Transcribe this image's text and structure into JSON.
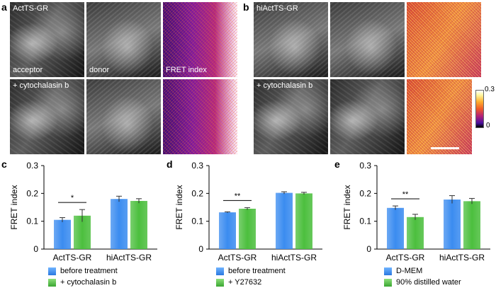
{
  "panels": {
    "a": {
      "letter": "a",
      "title": "ActTS-GR",
      "labels": {
        "acceptor": "acceptor",
        "donor": "donor",
        "fret": "FRET index"
      },
      "treatment": "+ cytochalasin b"
    },
    "b": {
      "letter": "b",
      "title": "hiActTS-GR",
      "treatment": "+ cytochalasin b"
    }
  },
  "colorbar": {
    "max": "0.3",
    "min": "0"
  },
  "chart_data": [
    {
      "letter": "c",
      "type": "bar",
      "ylabel": "FRET index",
      "ylim": [
        0,
        0.3
      ],
      "yticks": [
        "0",
        "0.1",
        "0.2",
        "0.3"
      ],
      "categories": [
        "ActTS-GR",
        "hiActTS-GR"
      ],
      "series": [
        {
          "name": "before treatment",
          "values": [
            0.105,
            0.18
          ],
          "errors": [
            0.008,
            0.01
          ],
          "color": "#3b8cf0"
        },
        {
          "name": "+ cytochalasin b",
          "values": [
            0.12,
            0.173
          ],
          "errors": [
            0.022,
            0.008
          ],
          "color": "#4cbf3e"
        }
      ],
      "significance": "*"
    },
    {
      "letter": "d",
      "type": "bar",
      "ylabel": "FRET index",
      "ylim": [
        0,
        0.3
      ],
      "yticks": [
        "0",
        "0.1",
        "0.2",
        "0.3"
      ],
      "categories": [
        "ActTS-GR",
        "hiActTS-GR"
      ],
      "series": [
        {
          "name": "before treatment",
          "values": [
            0.132,
            0.202
          ],
          "errors": [
            0.002,
            0.004
          ],
          "color": "#3b8cf0"
        },
        {
          "name": "+ Y27632",
          "values": [
            0.145,
            0.2
          ],
          "errors": [
            0.004,
            0.004
          ],
          "color": "#4cbf3e"
        }
      ],
      "significance": "**"
    },
    {
      "letter": "e",
      "type": "bar",
      "ylabel": "FRET index",
      "ylim": [
        0,
        0.3
      ],
      "yticks": [
        "0",
        "0.1",
        "0.2",
        "0.3"
      ],
      "categories": [
        "ActTS-GR",
        "hiActTS-GR"
      ],
      "series": [
        {
          "name": "D-MEM",
          "values": [
            0.148,
            0.178
          ],
          "errors": [
            0.007,
            0.014
          ],
          "color": "#3b8cf0"
        },
        {
          "name": "90% distilled water",
          "values": [
            0.115,
            0.172
          ],
          "errors": [
            0.01,
            0.01
          ],
          "color": "#4cbf3e"
        }
      ],
      "significance": "**"
    }
  ]
}
